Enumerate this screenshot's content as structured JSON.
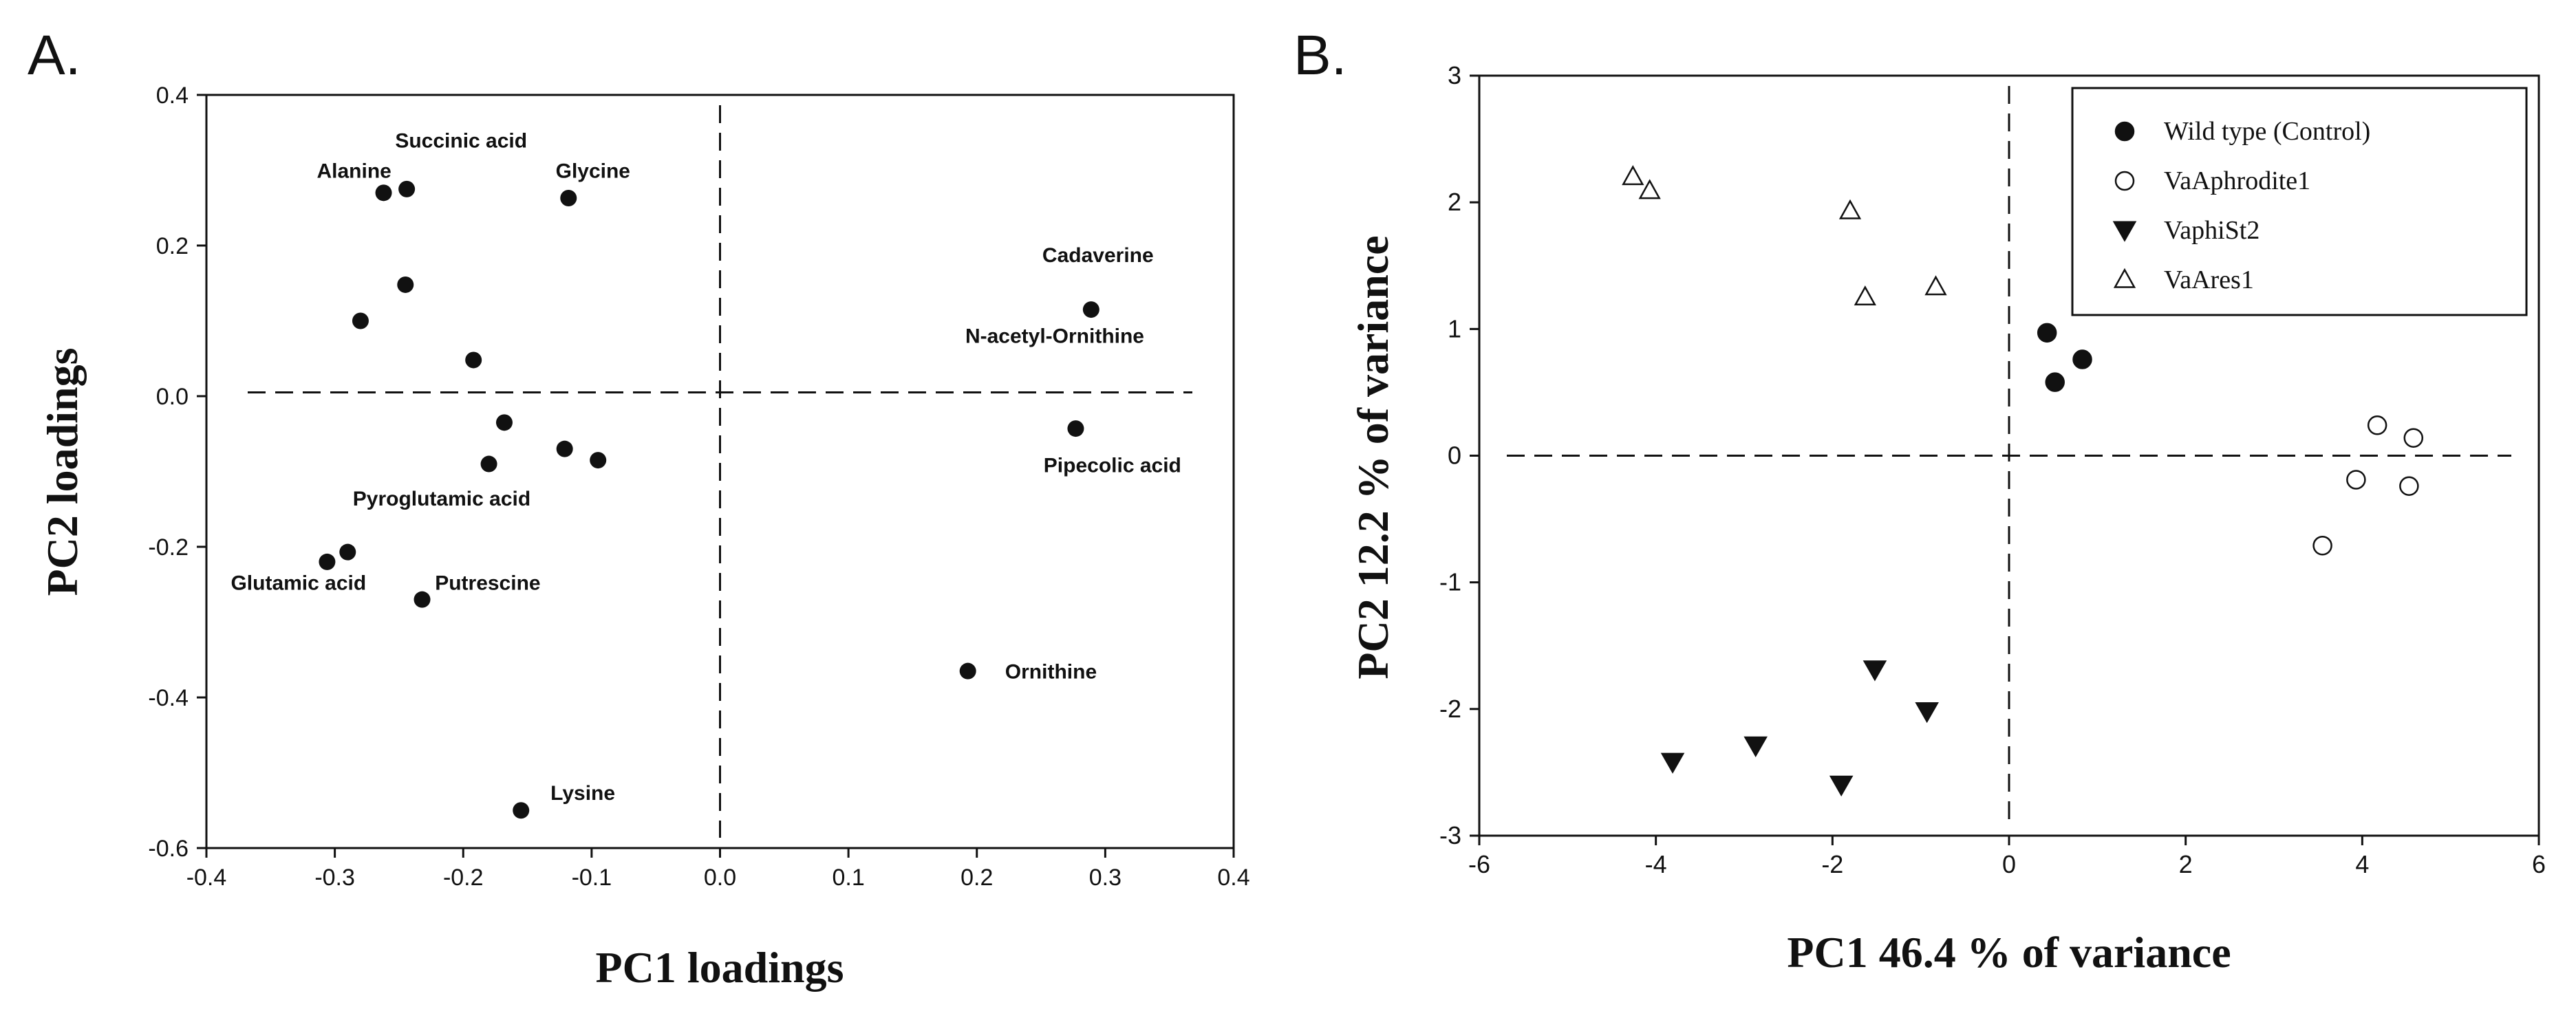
{
  "panels": {
    "a": {
      "letter": "A."
    },
    "b": {
      "letter": "B."
    }
  },
  "chart_data": [
    {
      "type": "scatter",
      "title": "",
      "xlabel": "PC1 loadings",
      "ylabel": "PC2 loadings",
      "xlim": [
        -0.4,
        0.4
      ],
      "ylim": [
        -0.6,
        0.4
      ],
      "xticks": [
        "-0.4",
        "-0.3",
        "-0.2",
        "-0.1",
        "0.0",
        "0.1",
        "0.2",
        "0.3",
        "0.4"
      ],
      "xtick_values": [
        -0.4,
        -0.3,
        -0.2,
        -0.1,
        0.0,
        0.1,
        0.2,
        0.3,
        0.4
      ],
      "yticks": [
        "-0.6",
        "-0.4",
        "-0.2",
        "0.0",
        "0.2",
        "0.4"
      ],
      "ytick_values": [
        -0.6,
        -0.4,
        -0.2,
        0.0,
        0.2,
        0.4
      ],
      "reference_lines": {
        "x": 0.0,
        "y": 0.005
      },
      "points": [
        {
          "x": -0.262,
          "y": 0.27
        },
        {
          "x": -0.244,
          "y": 0.275
        },
        {
          "x": -0.118,
          "y": 0.263
        },
        {
          "x": -0.245,
          "y": 0.148
        },
        {
          "x": -0.28,
          "y": 0.1
        },
        {
          "x": -0.192,
          "y": 0.048
        },
        {
          "x": -0.168,
          "y": -0.035
        },
        {
          "x": -0.18,
          "y": -0.09
        },
        {
          "x": -0.121,
          "y": -0.07
        },
        {
          "x": -0.095,
          "y": -0.085
        },
        {
          "x": -0.306,
          "y": -0.22
        },
        {
          "x": -0.29,
          "y": -0.207
        },
        {
          "x": -0.232,
          "y": -0.27
        },
        {
          "x": -0.155,
          "y": -0.55
        },
        {
          "x": 0.193,
          "y": -0.365
        },
        {
          "x": 0.289,
          "y": 0.115
        },
        {
          "x": 0.277,
          "y": -0.043
        }
      ],
      "annotations": [
        {
          "text": "Succinic acid",
          "x": -0.253,
          "y": 0.33
        },
        {
          "text": "Alanine",
          "x": -0.314,
          "y": 0.29
        },
        {
          "text": "Glycine",
          "x": -0.128,
          "y": 0.29
        },
        {
          "text": "Cadaverine",
          "x": 0.251,
          "y": 0.178
        },
        {
          "text": "N-acetyl-Ornithine",
          "x": 0.191,
          "y": 0.071
        },
        {
          "text": "Pipecolic acid",
          "x": 0.252,
          "y": -0.101
        },
        {
          "text": "Pyroglutamic acid",
          "x": -0.286,
          "y": -0.145
        },
        {
          "text": "Glutamic acid",
          "x": -0.381,
          "y": -0.257
        },
        {
          "text": "Putrescine",
          "x": -0.222,
          "y": -0.257
        },
        {
          "text": "Ornithine",
          "x": 0.222,
          "y": -0.375
        },
        {
          "text": "Lysine",
          "x": -0.132,
          "y": -0.536
        }
      ]
    },
    {
      "type": "scatter",
      "title": "",
      "xlabel": "PC1 46.4 % of variance",
      "ylabel": "PC2 12.2 % of variance",
      "xlim": [
        -6,
        6
      ],
      "ylim": [
        -3,
        3
      ],
      "xticks": [
        "-6",
        "-4",
        "-2",
        "0",
        "2",
        "4",
        "6"
      ],
      "xtick_values": [
        -6,
        -4,
        -2,
        0,
        2,
        4,
        6
      ],
      "yticks": [
        "-3",
        "-2",
        "-1",
        "0",
        "1",
        "2",
        "3"
      ],
      "ytick_values": [
        -3,
        -2,
        -1,
        0,
        1,
        2,
        3
      ],
      "reference_lines": {
        "x": 0,
        "y": 0
      },
      "legend_position": "top-right",
      "series": [
        {
          "name": "Wild type (Control)",
          "marker": "filled-circle",
          "points": [
            {
              "x": 0.43,
              "y": 0.97
            },
            {
              "x": 0.83,
              "y": 0.76
            },
            {
              "x": 0.52,
              "y": 0.58
            }
          ]
        },
        {
          "name": "VaAphrodite1",
          "marker": "open-circle",
          "points": [
            {
              "x": 4.17,
              "y": 0.24
            },
            {
              "x": 4.58,
              "y": 0.14
            },
            {
              "x": 3.93,
              "y": -0.19
            },
            {
              "x": 4.53,
              "y": -0.24
            },
            {
              "x": 3.55,
              "y": -0.71
            }
          ]
        },
        {
          "name": "VaphiSt2",
          "marker": "filled-triangle-down",
          "points": [
            {
              "x": -1.52,
              "y": -1.69
            },
            {
              "x": -0.93,
              "y": -2.02
            },
            {
              "x": -3.81,
              "y": -2.42
            },
            {
              "x": -2.87,
              "y": -2.29
            },
            {
              "x": -1.9,
              "y": -2.6
            }
          ]
        },
        {
          "name": "VaAres1",
          "marker": "open-triangle-up",
          "points": [
            {
              "x": -4.26,
              "y": 2.2
            },
            {
              "x": -4.07,
              "y": 2.09
            },
            {
              "x": -1.8,
              "y": 1.93
            },
            {
              "x": -0.83,
              "y": 1.33
            },
            {
              "x": -1.63,
              "y": 1.25
            }
          ]
        }
      ]
    }
  ]
}
